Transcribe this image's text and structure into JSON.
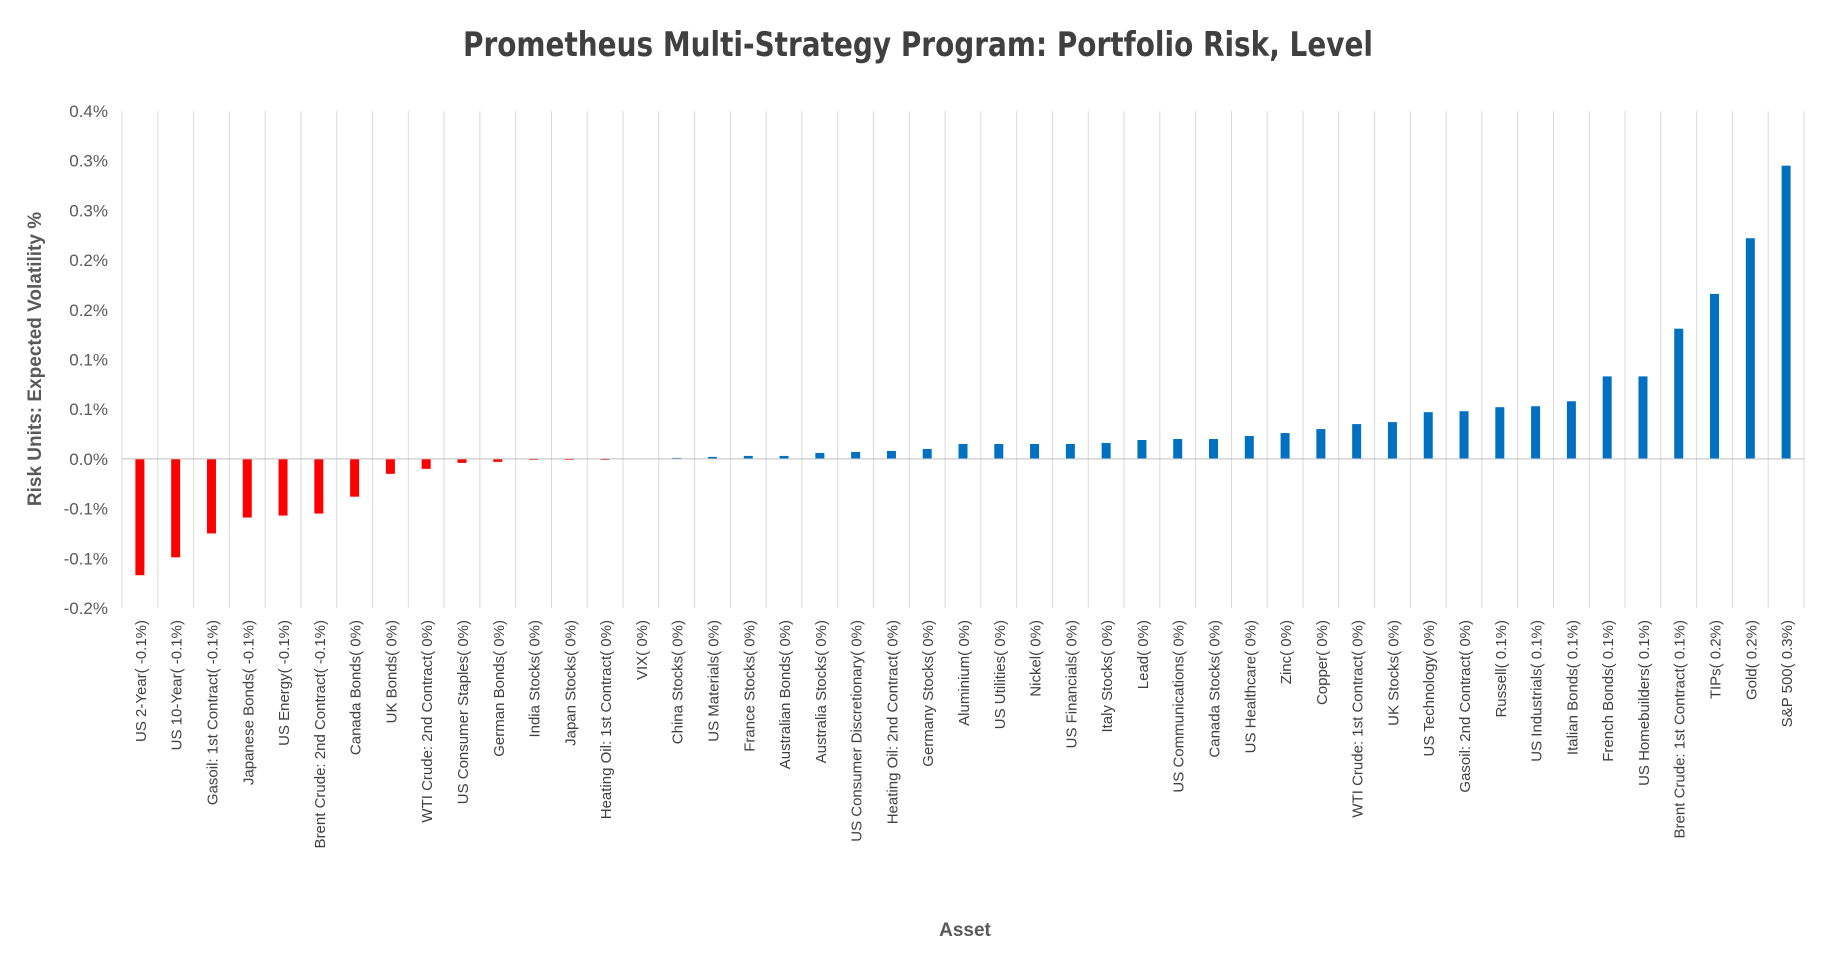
{
  "chart_data": {
    "type": "bar",
    "title": "Prometheus Multi-Strategy Program: Portfolio Risk, Level",
    "xlabel": "Asset",
    "ylabel": "Risk Units: Expected Volatility %",
    "ylim": [
      -0.15,
      0.35
    ],
    "y_ticks": [
      {
        "value": 0.35,
        "label": "0.4%"
      },
      {
        "value": 0.3,
        "label": "0.3%"
      },
      {
        "value": 0.25,
        "label": "0.3%"
      },
      {
        "value": 0.2,
        "label": "0.2%"
      },
      {
        "value": 0.15,
        "label": "0.2%"
      },
      {
        "value": 0.1,
        "label": "0.1%"
      },
      {
        "value": 0.05,
        "label": "0.1%"
      },
      {
        "value": 0.0,
        "label": "0.0%"
      },
      {
        "value": -0.05,
        "label": "-0.1%"
      },
      {
        "value": -0.1,
        "label": "-0.1%"
      },
      {
        "value": -0.15,
        "label": "-0.2%"
      }
    ],
    "grid": true,
    "legend": "none",
    "colors": {
      "negative": "#ff0000",
      "positive": "#0070c0",
      "grid": "#d9d9d9",
      "axis_text": "#595959",
      "title": "#404040"
    },
    "categories": [
      "US 2-Year( -0.1%)",
      "US 10-Year( -0.1%)",
      "Gasoil: 1st Contract( -0.1%)",
      "Japanese Bonds( -0.1%)",
      "US Energy( -0.1%)",
      "Brent Crude: 2nd Contract( -0.1%)",
      "Canada Bonds( 0%)",
      "UK Bonds( 0%)",
      "WTI Crude: 2nd Contract( 0%)",
      "US Consumer Staples( 0%)",
      "German Bonds( 0%)",
      "India Stocks( 0%)",
      "Japan Stocks( 0%)",
      "Heating Oil: 1st Contract( 0%)",
      "VIX( 0%)",
      "China Stocks( 0%)",
      "US Materials( 0%)",
      "France Stocks( 0%)",
      "Australian Bonds( 0%)",
      "Australia Stocks( 0%)",
      "US Consumer Discretionary( 0%)",
      "Heating Oil: 2nd Contract( 0%)",
      "Germany Stocks( 0%)",
      "Aluminium( 0%)",
      "US Utilities( 0%)",
      "Nickel( 0%)",
      "US Financials( 0%)",
      "Italy Stocks( 0%)",
      "Lead( 0%)",
      "US Communications( 0%)",
      "Canada Stocks( 0%)",
      "US Healthcare( 0%)",
      "Zinc( 0%)",
      "Copper( 0%)",
      "WTI Crude: 1st Contract( 0%)",
      "UK Stocks( 0%)",
      "US Technology( 0%)",
      "Gasoil: 2nd Contract( 0%)",
      "Russell( 0.1%)",
      "US Industrials( 0.1%)",
      "Italian Bonds( 0.1%)",
      "French Bonds( 0.1%)",
      "US Homebuilders( 0.1%)",
      "Brent Crude: 1st Contract( 0.1%)",
      "TIPs( 0.2%)",
      "Gold( 0.2%)",
      "S&P 500( 0.3%)"
    ],
    "values": [
      -0.117,
      -0.099,
      -0.075,
      -0.059,
      -0.057,
      -0.055,
      -0.038,
      -0.015,
      -0.01,
      -0.004,
      -0.003,
      -0.001,
      -0.001,
      -0.001,
      0.0,
      0.001,
      0.002,
      0.003,
      0.003,
      0.006,
      0.007,
      0.008,
      0.01,
      0.015,
      0.015,
      0.015,
      0.015,
      0.016,
      0.019,
      0.02,
      0.02,
      0.023,
      0.026,
      0.03,
      0.035,
      0.037,
      0.047,
      0.048,
      0.052,
      0.053,
      0.058,
      0.083,
      0.083,
      0.131,
      0.166,
      0.222,
      0.295
    ]
  }
}
